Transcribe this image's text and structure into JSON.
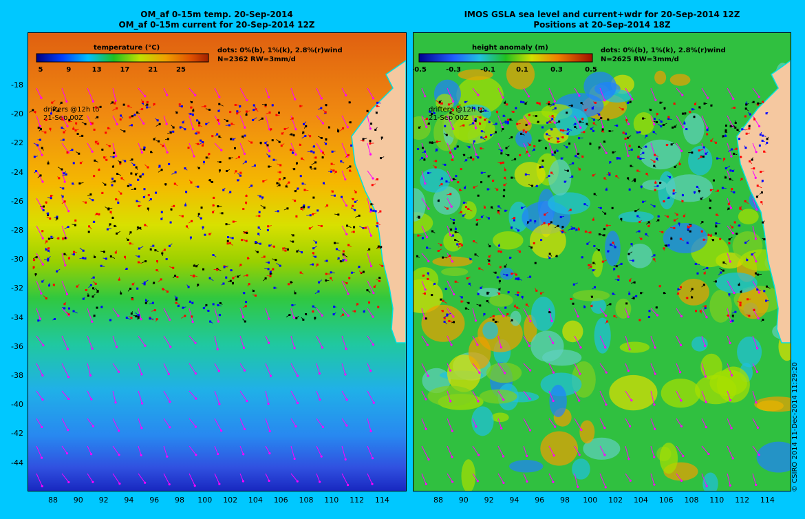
{
  "left_panel": {
    "title_line1": "OM_af 0-15m temp. 20-Sep-2014",
    "title_line2": "OM_af 0-15m current for 20-Sep-2014 12Z",
    "colorbar_title": "temperature (°C)",
    "colorbar_labels": [
      "5",
      "9",
      "13",
      "17",
      "21",
      "25"
    ],
    "info_line1": "dots: 0%(b), 1%(k), 2.8%(r)wind",
    "info_line2": "N=2362 RW=3mm/d",
    "drifters_line1": "drifters @12h to",
    "drifters_line2": "21-Sep 00Z"
  },
  "right_panel": {
    "title_line1": "IMOS GSLA sea level and current+wdr for 20-Sep-2014 12Z",
    "title_line2": "Positions at 20-Sep-2014 18Z",
    "colorbar_title": "height anomaly (m)",
    "colorbar_labels": [
      "-0.5",
      "-0.3",
      "-0.1",
      "0.1",
      "0.3",
      "0.5"
    ],
    "info_line1": "dots: 0%(b), 1%(k), 2.8%(r)wind",
    "info_line2": "N=2625 RW=3mm/d",
    "drifters_line1": "drifters @12h to",
    "drifters_line2": "21-Sep 00Z"
  },
  "y_axis_labels": [
    "-18",
    "-20",
    "-22",
    "-24",
    "-26",
    "-28",
    "-30",
    "-32",
    "-34",
    "-36",
    "-38",
    "-40",
    "-42",
    "-44"
  ],
  "x_axis_labels": [
    "88",
    "90",
    "92",
    "94",
    "96",
    "98",
    "100",
    "102",
    "104",
    "106",
    "108",
    "110",
    "112",
    "114"
  ],
  "copyright": "© CSIRO 2014   11-Dec-2014 11:29:20",
  "colors": {
    "background": "#00c8ff",
    "land": "#f5c8a0",
    "coastline": "#00e0e0",
    "vectors": "#ff00ff",
    "drifter_blue": "#0000ff",
    "drifter_black": "#000000",
    "drifter_red": "#ff0000"
  }
}
